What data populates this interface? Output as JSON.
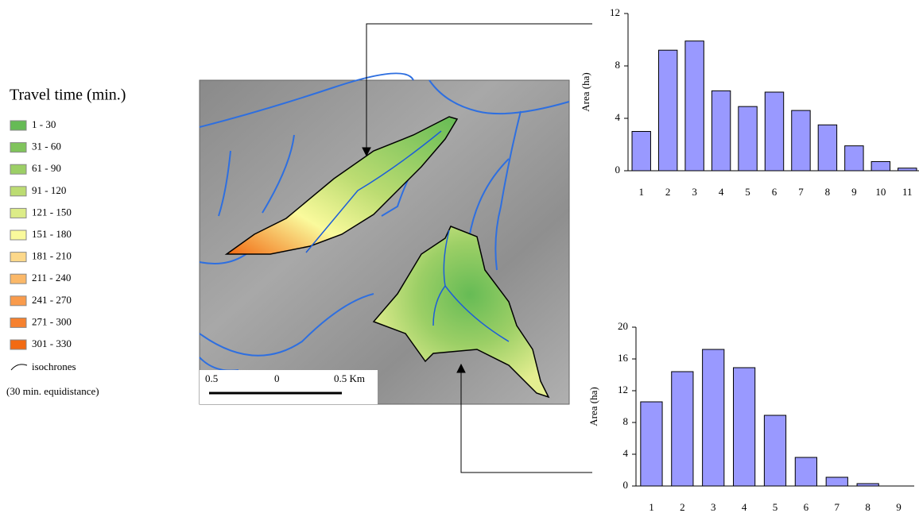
{
  "legend": {
    "title": "Travel time (min.)",
    "items": [
      {
        "label": "1 - 30",
        "color": "#66bb55"
      },
      {
        "label": "31 - 60",
        "color": "#80c45c"
      },
      {
        "label": "61 - 90",
        "color": "#9ccf66"
      },
      {
        "label": "91 - 120",
        "color": "#bcdc72"
      },
      {
        "label": "121 - 150",
        "color": "#dcec88"
      },
      {
        "label": "151 - 180",
        "color": "#fafa9c"
      },
      {
        "label": "181 - 210",
        "color": "#fcd88a"
      },
      {
        "label": "211 - 240",
        "color": "#fbb868"
      },
      {
        "label": "241 - 270",
        "color": "#f99b4c"
      },
      {
        "label": "271 - 300",
        "color": "#f6812f"
      },
      {
        "label": "301 - 330",
        "color": "#f26a12"
      }
    ],
    "isochrones": "isochrones",
    "note": "(30 min. equidistance)"
  },
  "map": {
    "scale_labels": [
      "0.5",
      "0",
      "0.5 Km"
    ]
  },
  "chart_data": [
    {
      "type": "bar",
      "y_label": "Area (ha)",
      "color": "#9999ff",
      "categories": [
        "1",
        "2",
        "3",
        "4",
        "5",
        "6",
        "7",
        "8",
        "9",
        "10",
        "11"
      ],
      "values": [
        3,
        9.2,
        9.9,
        6.1,
        4.9,
        6.0,
        4.6,
        3.5,
        1.9,
        0.7,
        0.2
      ],
      "ylim": [
        0,
        12
      ],
      "yticks": [
        0,
        4,
        8,
        12
      ]
    },
    {
      "type": "bar",
      "y_label": "Area (ha)",
      "color": "#9999ff",
      "categories": [
        "1",
        "2",
        "3",
        "4",
        "5",
        "6",
        "7",
        "8",
        "9"
      ],
      "values": [
        10.6,
        14.4,
        17.2,
        14.9,
        8.9,
        3.6,
        1.1,
        0.3,
        0
      ],
      "ylim": [
        0,
        20
      ],
      "yticks": [
        0,
        4,
        8,
        12,
        16,
        20
      ]
    }
  ]
}
